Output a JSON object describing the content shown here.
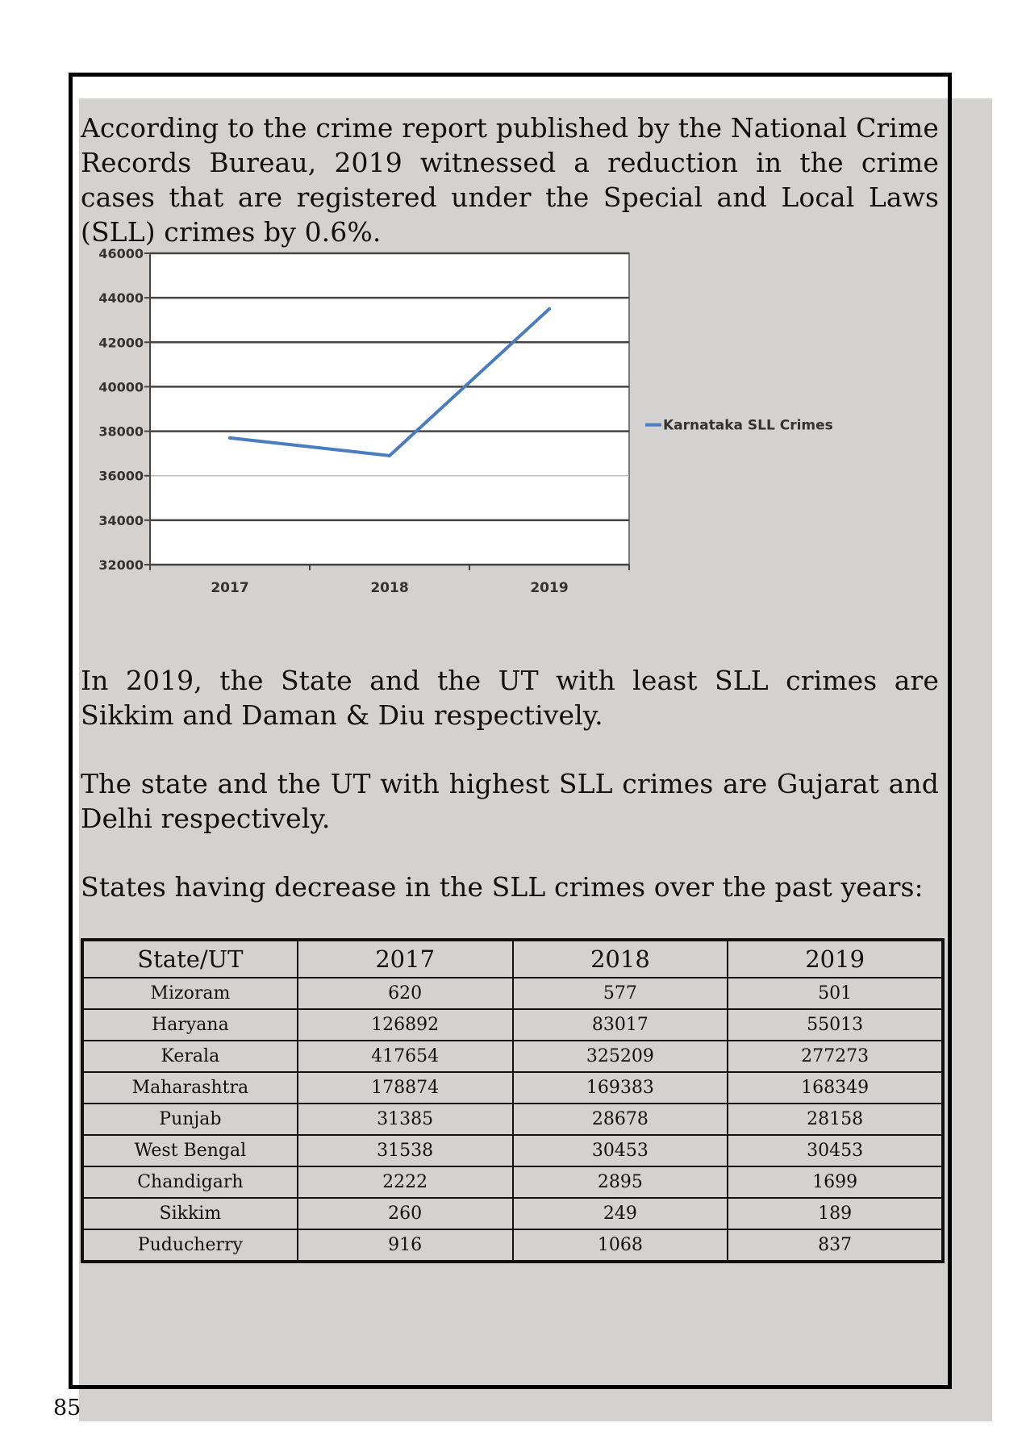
{
  "paragraphs": {
    "intro": "According to the crime report published by the National Crime Records Bureau, 2019 witnessed a reduction in the crime cases that are registered under the Special and Local Laws (SLL) crimes by 0.6%.",
    "least": "In 2019, the State and the UT with least SLL crimes are Sikkim and Daman & Diu respectively.",
    "highest": "The state and the UT with highest SLL crimes are Gujarat and Delhi respectively.",
    "table_intro": "States having decrease in the SLL crimes over the past years:"
  },
  "chart_data": {
    "type": "line",
    "title": "",
    "xlabel": "",
    "ylabel": "",
    "x": [
      "2017",
      "2018",
      "2019"
    ],
    "series": [
      {
        "name": "Karnataka SLL Crimes",
        "values": [
          37700,
          36900,
          43500
        ],
        "color": "#4a7cc0"
      }
    ],
    "ylim": [
      32000,
      46000
    ],
    "y_ticks": [
      "32000",
      "34000",
      "36000",
      "38000",
      "40000",
      "42000",
      "44000",
      "46000"
    ],
    "grid": true,
    "legend": "right"
  },
  "table": {
    "headers": [
      "State/UT",
      "2017",
      "2018",
      "2019"
    ],
    "rows": [
      [
        "Mizoram",
        "620",
        "577",
        "501"
      ],
      [
        "Haryana",
        "126892",
        "83017",
        "55013"
      ],
      [
        "Kerala",
        "417654",
        "325209",
        "277273"
      ],
      [
        "Maharashtra",
        "178874",
        "169383",
        "168349"
      ],
      [
        "Punjab",
        "31385",
        "28678",
        "28158"
      ],
      [
        "West Bengal",
        "31538",
        "30453",
        "30453"
      ],
      [
        "Chandigarh",
        "2222",
        "2895",
        "1699"
      ],
      [
        "Sikkim",
        "260",
        "249",
        "189"
      ],
      [
        "Puducherry",
        "916",
        "1068",
        "837"
      ]
    ]
  },
  "page_number": "85"
}
